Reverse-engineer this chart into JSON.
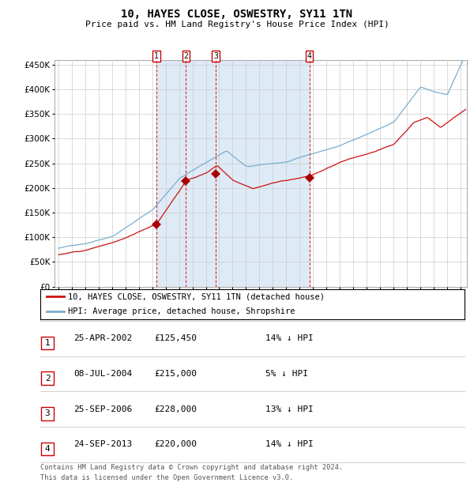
{
  "title": "10, HAYES CLOSE, OSWESTRY, SY11 1TN",
  "subtitle": "Price paid vs. HM Land Registry's House Price Index (HPI)",
  "legend_line1": "10, HAYES CLOSE, OSWESTRY, SY11 1TN (detached house)",
  "legend_line2": "HPI: Average price, detached house, Shropshire",
  "footer1": "Contains HM Land Registry data © Crown copyright and database right 2024.",
  "footer2": "This data is licensed under the Open Government Licence v3.0.",
  "sales": [
    {
      "num": 1,
      "date": "25-APR-2002",
      "year": 2002.32,
      "price": 125450,
      "pct": "14%",
      "dir": "↓"
    },
    {
      "num": 2,
      "date": "08-JUL-2004",
      "year": 2004.52,
      "price": 215000,
      "pct": "5%",
      "dir": "↓"
    },
    {
      "num": 3,
      "date": "25-SEP-2006",
      "year": 2006.73,
      "price": 228000,
      "pct": "13%",
      "dir": "↓"
    },
    {
      "num": 4,
      "date": "24-SEP-2013",
      "year": 2013.73,
      "price": 220000,
      "pct": "14%",
      "dir": "↓"
    }
  ],
  "hpi_color": "#7aadcf",
  "price_color": "#cc1111",
  "sale_marker_color": "#aa0000",
  "shade_color": "#deeaf5",
  "grid_color": "#cccccc",
  "vline_color": "#dd2222",
  "ylim": [
    0,
    460000
  ],
  "xlim_start": 1994.7,
  "xlim_end": 2025.5
}
